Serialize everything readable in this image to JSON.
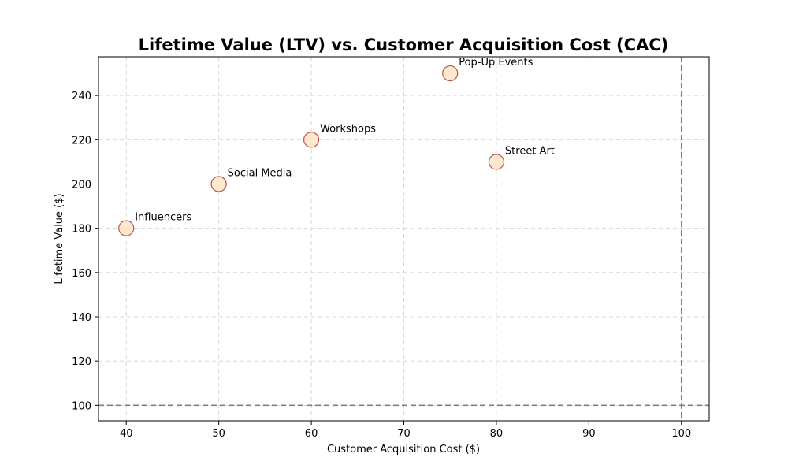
{
  "chart_data": {
    "type": "scatter",
    "title": "Lifetime Value (LTV) vs. Customer Acquisition Cost (CAC)",
    "xlabel": "Customer Acquisition Cost ($)",
    "ylabel": "Lifetime Value ($)",
    "xlim": [
      37,
      103
    ],
    "ylim": [
      93,
      257.5
    ],
    "xticks": [
      40,
      50,
      60,
      70,
      80,
      90,
      100
    ],
    "yticks": [
      100,
      120,
      140,
      160,
      180,
      200,
      220,
      240
    ],
    "grid": true,
    "points": [
      {
        "label": "Social Media",
        "x": 50,
        "y": 200
      },
      {
        "label": "Influencers",
        "x": 40,
        "y": 180
      },
      {
        "label": "Street Art",
        "x": 80,
        "y": 210
      },
      {
        "label": "Pop-Up Events",
        "x": 75,
        "y": 250
      },
      {
        "label": "Workshops",
        "x": 60,
        "y": 220
      }
    ],
    "reference_lines": [
      {
        "axis": "x",
        "value": 100
      },
      {
        "axis": "y",
        "value": 100
      }
    ],
    "colors": {
      "marker_fill": "#ffe4c4",
      "marker_edge": "#b5574f",
      "reference_line": "#808080",
      "grid": "#cfcfcf"
    }
  }
}
